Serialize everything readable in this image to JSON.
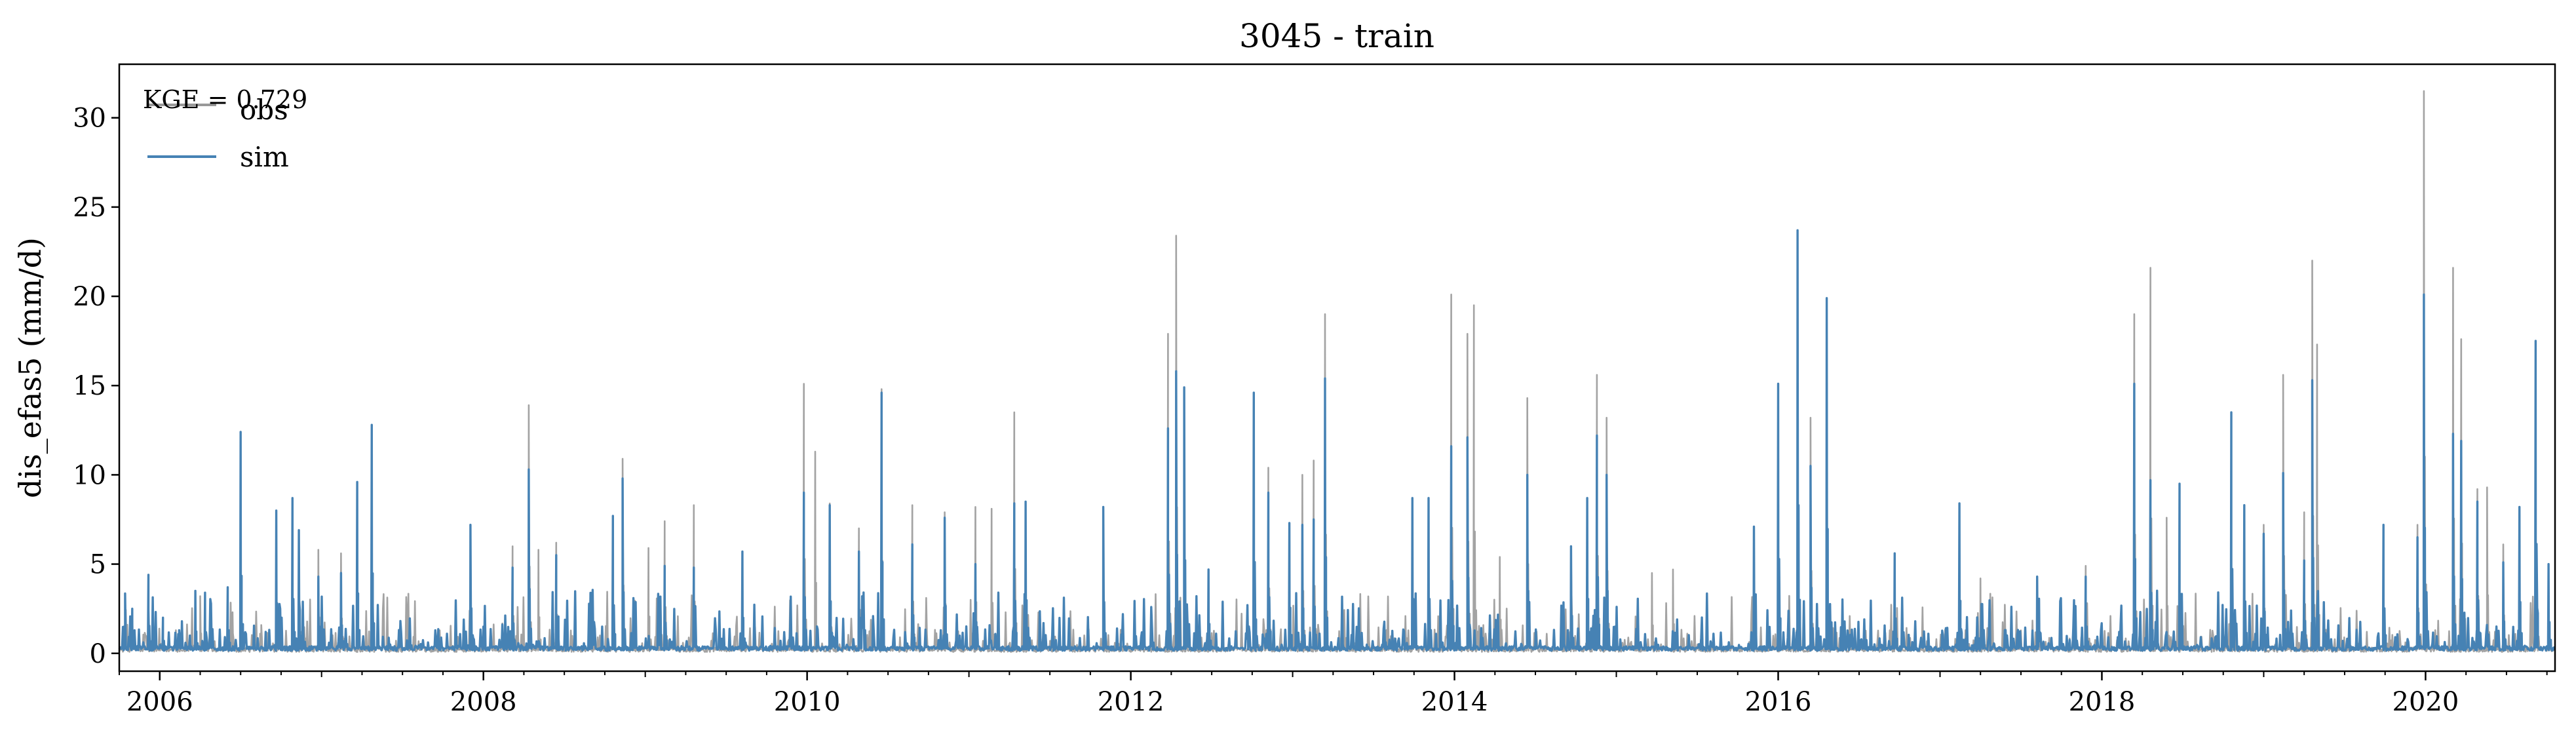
{
  "chart_data": {
    "type": "line",
    "title": "3045 - train",
    "ylabel": "dis_efas5 (mm/d)",
    "xlabel": "",
    "annotation": "KGE = 0.729",
    "xlim": [
      2005.75,
      2020.8
    ],
    "ylim": [
      -1,
      33
    ],
    "x_ticks": [
      2006,
      2008,
      2010,
      2012,
      2014,
      2016,
      2018,
      2020
    ],
    "x_tick_labels": [
      "2006",
      "2008",
      "2010",
      "2012",
      "2014",
      "2016",
      "2018",
      "2020"
    ],
    "y_ticks": [
      0,
      5,
      10,
      15,
      20,
      25,
      30
    ],
    "y_tick_labels": [
      "0",
      "5",
      "10",
      "15",
      "20",
      "25",
      "30"
    ],
    "grid": false,
    "legend_position": "top-left",
    "series": [
      {
        "name": "obs",
        "color": "#999999",
        "peaks": [
          [
            2005.8,
            1.6
          ],
          [
            2006.1,
            1.3
          ],
          [
            2006.25,
            3.2
          ],
          [
            2006.45,
            2.3
          ],
          [
            2006.62,
            1.1
          ],
          [
            2006.72,
            7.5
          ],
          [
            2006.82,
            8.3
          ],
          [
            2006.98,
            5.8
          ],
          [
            2007.12,
            5.6
          ],
          [
            2007.22,
            8.9
          ],
          [
            2007.31,
            11.9
          ],
          [
            2007.92,
            7.0
          ],
          [
            2008.18,
            6.0
          ],
          [
            2008.28,
            13.9
          ],
          [
            2008.34,
            5.8
          ],
          [
            2008.45,
            6.2
          ],
          [
            2008.8,
            7.3
          ],
          [
            2008.86,
            10.9
          ],
          [
            2009.02,
            5.9
          ],
          [
            2009.12,
            7.4
          ],
          [
            2009.3,
            8.3
          ],
          [
            2009.6,
            5.7
          ],
          [
            2009.98,
            15.1
          ],
          [
            2010.05,
            11.3
          ],
          [
            2010.14,
            8.4
          ],
          [
            2010.32,
            7.0
          ],
          [
            2010.46,
            14.8
          ],
          [
            2010.65,
            8.3
          ],
          [
            2010.85,
            7.9
          ],
          [
            2011.04,
            8.2
          ],
          [
            2011.14,
            8.1
          ],
          [
            2011.28,
            13.5
          ],
          [
            2011.35,
            8.5
          ],
          [
            2011.83,
            8.1
          ],
          [
            2012.23,
            17.9
          ],
          [
            2012.28,
            23.4
          ],
          [
            2012.33,
            14.4
          ],
          [
            2012.48,
            4.6
          ],
          [
            2012.76,
            14.6
          ],
          [
            2012.85,
            10.4
          ],
          [
            2012.98,
            7.2
          ],
          [
            2013.06,
            10.0
          ],
          [
            2013.13,
            10.8
          ],
          [
            2013.2,
            19.0
          ],
          [
            2013.74,
            8.7
          ],
          [
            2013.84,
            8.7
          ],
          [
            2013.98,
            20.1
          ],
          [
            2014.08,
            17.9
          ],
          [
            2014.12,
            19.5
          ],
          [
            2014.28,
            5.4
          ],
          [
            2014.45,
            14.3
          ],
          [
            2014.72,
            5.9
          ],
          [
            2014.82,
            8.6
          ],
          [
            2014.88,
            15.6
          ],
          [
            2014.94,
            13.2
          ],
          [
            2015.22,
            4.5
          ],
          [
            2015.35,
            4.7
          ],
          [
            2015.85,
            7.1
          ],
          [
            2016.0,
            15.1
          ],
          [
            2016.12,
            23.7
          ],
          [
            2016.2,
            13.2
          ],
          [
            2016.3,
            19.9
          ],
          [
            2016.72,
            5.6
          ],
          [
            2017.12,
            8.4
          ],
          [
            2017.25,
            4.2
          ],
          [
            2017.6,
            4.1
          ],
          [
            2017.9,
            4.9
          ],
          [
            2018.2,
            19.0
          ],
          [
            2018.3,
            21.6
          ],
          [
            2018.4,
            7.6
          ],
          [
            2018.48,
            9.4
          ],
          [
            2018.8,
            13.5
          ],
          [
            2018.88,
            8.3
          ],
          [
            2019.0,
            7.2
          ],
          [
            2019.12,
            15.6
          ],
          [
            2019.25,
            7.9
          ],
          [
            2019.3,
            22.0
          ],
          [
            2019.33,
            17.3
          ],
          [
            2019.74,
            6.4
          ],
          [
            2019.95,
            7.2
          ],
          [
            2019.99,
            31.5
          ],
          [
            2020.17,
            21.6
          ],
          [
            2020.22,
            17.6
          ],
          [
            2020.32,
            9.2
          ],
          [
            2020.38,
            9.3
          ],
          [
            2020.48,
            6.1
          ],
          [
            2020.58,
            8.2
          ],
          [
            2020.68,
            17.5
          ],
          [
            2020.76,
            5.0
          ]
        ]
      },
      {
        "name": "sim",
        "color": "#4682b4",
        "peaks": [
          [
            2005.78,
            1.5
          ],
          [
            2005.83,
            2.5
          ],
          [
            2005.93,
            4.4
          ],
          [
            2006.02,
            2.0
          ],
          [
            2006.12,
            1.3
          ],
          [
            2006.22,
            3.5
          ],
          [
            2006.28,
            3.4
          ],
          [
            2006.42,
            3.7
          ],
          [
            2006.5,
            12.4
          ],
          [
            2006.72,
            8.0
          ],
          [
            2006.82,
            8.7
          ],
          [
            2006.86,
            6.9
          ],
          [
            2006.98,
            4.3
          ],
          [
            2007.12,
            4.5
          ],
          [
            2007.22,
            9.6
          ],
          [
            2007.31,
            12.8
          ],
          [
            2007.92,
            7.2
          ],
          [
            2008.18,
            4.8
          ],
          [
            2008.28,
            10.3
          ],
          [
            2008.45,
            5.5
          ],
          [
            2008.8,
            7.7
          ],
          [
            2008.86,
            9.8
          ],
          [
            2009.12,
            4.9
          ],
          [
            2009.3,
            4.8
          ],
          [
            2009.6,
            5.7
          ],
          [
            2009.98,
            9.0
          ],
          [
            2010.14,
            8.3
          ],
          [
            2010.32,
            5.7
          ],
          [
            2010.46,
            14.6
          ],
          [
            2010.65,
            6.1
          ],
          [
            2010.85,
            7.6
          ],
          [
            2011.04,
            5.0
          ],
          [
            2011.28,
            8.4
          ],
          [
            2011.35,
            8.5
          ],
          [
            2011.83,
            8.2
          ],
          [
            2012.23,
            12.6
          ],
          [
            2012.28,
            15.8
          ],
          [
            2012.33,
            14.9
          ],
          [
            2012.48,
            4.7
          ],
          [
            2012.76,
            14.6
          ],
          [
            2012.85,
            9.0
          ],
          [
            2012.98,
            7.3
          ],
          [
            2013.06,
            7.2
          ],
          [
            2013.13,
            7.5
          ],
          [
            2013.2,
            15.4
          ],
          [
            2013.74,
            8.7
          ],
          [
            2013.84,
            8.7
          ],
          [
            2013.98,
            11.6
          ],
          [
            2014.08,
            12.1
          ],
          [
            2014.45,
            10.0
          ],
          [
            2014.72,
            6.0
          ],
          [
            2014.82,
            8.7
          ],
          [
            2014.88,
            12.2
          ],
          [
            2014.94,
            10.0
          ],
          [
            2015.85,
            7.1
          ],
          [
            2016.0,
            15.1
          ],
          [
            2016.12,
            23.7
          ],
          [
            2016.2,
            10.5
          ],
          [
            2016.3,
            19.9
          ],
          [
            2016.72,
            5.6
          ],
          [
            2017.12,
            8.4
          ],
          [
            2017.6,
            4.3
          ],
          [
            2017.9,
            4.3
          ],
          [
            2018.2,
            15.1
          ],
          [
            2018.3,
            9.7
          ],
          [
            2018.48,
            9.5
          ],
          [
            2018.8,
            13.5
          ],
          [
            2018.88,
            8.3
          ],
          [
            2019.0,
            6.7
          ],
          [
            2019.12,
            10.1
          ],
          [
            2019.25,
            5.2
          ],
          [
            2019.3,
            15.3
          ],
          [
            2019.74,
            7.2
          ],
          [
            2019.95,
            6.5
          ],
          [
            2019.99,
            20.1
          ],
          [
            2020.17,
            12.3
          ],
          [
            2020.22,
            11.9
          ],
          [
            2020.32,
            8.5
          ],
          [
            2020.48,
            5.1
          ],
          [
            2020.58,
            8.2
          ],
          [
            2020.68,
            17.5
          ],
          [
            2020.76,
            5.0
          ]
        ]
      }
    ]
  }
}
